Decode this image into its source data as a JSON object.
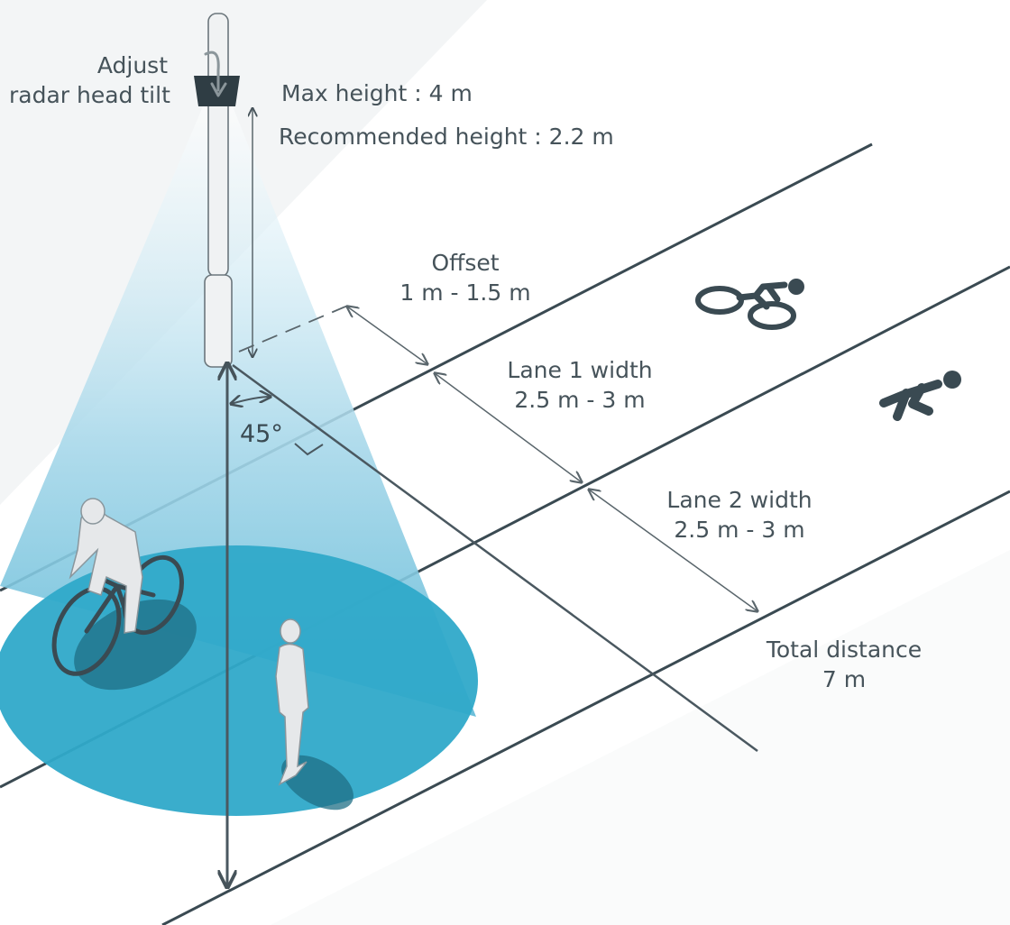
{
  "tilt": {
    "line1": "Adjust",
    "line2": "radar head tilt"
  },
  "heights": {
    "max": "Max height : 4 m",
    "recommended": "Recommended height : 2.2 m"
  },
  "offset": {
    "title": "Offset",
    "value": "1 m - 1.5 m"
  },
  "lane1": {
    "title": "Lane 1 width",
    "value": "2.5 m - 3 m"
  },
  "lane2": {
    "title": "Lane 2 width",
    "value": "2.5 m - 3 m"
  },
  "total": {
    "title": "Total distance",
    "value": "7 m"
  },
  "angle": "45°",
  "colors": {
    "beam": "#7fc4dd",
    "ground_zone": "#2fa9c9",
    "shadow": "#1f6f86",
    "line": "#46535a",
    "icon": "#3a4a52",
    "figure": "#e6e8ea"
  },
  "icons": {
    "lane1_symbol": "bicycle-icon",
    "lane2_symbol": "pedestrian-icon"
  }
}
